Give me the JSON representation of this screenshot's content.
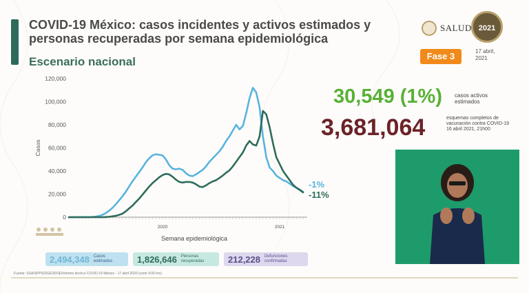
{
  "slide": {
    "title": "COVID-19 México: casos incidentes y activos estimados y personas recuperadas por semana epidemiológica",
    "subtitle": "Escenario nacional",
    "fase_label": "Fase 3",
    "date_line1": "17 abril,",
    "date_line2": "2021",
    "salud_label": "SALUD",
    "logo_year": "2021"
  },
  "stats": {
    "active_value": "30,549 (1%)",
    "active_label": "casos activos estimados",
    "vaccine_value": "3,681,064",
    "vaccine_label": "esquemas completos de vacunación contra COVID-19",
    "vaccine_date": "16 abril 2021, 21h00"
  },
  "bottom": {
    "box1_value": "2,494,348",
    "box1_label": "Casos estimados",
    "box2_value": "1,826,646",
    "box2_label": "Personas recuperadas",
    "box3_value": "212,228",
    "box3_label": "Defunciones confirmadas"
  },
  "source": "Fuente: SSA/SPPS/DGE/DIOE/Informe técnico COVID-19 México - 17 abril 2020 (corte 9:00 hrs)",
  "colors": {
    "incidentes": "#58b3de",
    "recuperadas": "#2e6b5a",
    "active_green": "#58b135",
    "vaccine_maroon": "#6b2328",
    "fase_orange": "#f08a1a"
  },
  "chart_data": {
    "type": "line",
    "title": "",
    "xlabel": "Semana epidemiológica",
    "ylabel": "Casos",
    "ylim": [
      0,
      120000
    ],
    "yticks": [
      "0",
      "20,000",
      "40,000",
      "60,000",
      "80,000",
      "100,000",
      "120,000"
    ],
    "ytick_values": [
      0,
      20000,
      40000,
      60000,
      80000,
      100000,
      120000
    ],
    "xtick_labels": [
      {
        "label": "2020",
        "week": 28
      },
      {
        "label": "2021",
        "week": 63
      }
    ],
    "grid": false,
    "weeks": 70,
    "series": [
      {
        "values": [
          0,
          0,
          0,
          0,
          0,
          0,
          0,
          200,
          500,
          1000,
          2000,
          3500,
          5500,
          8000,
          11000,
          14500,
          18000,
          22000,
          26500,
          31000,
          35000,
          39000,
          43000,
          47500,
          51000,
          53500,
          54500,
          54000,
          53500,
          50000,
          45000,
          42000,
          41500,
          42000,
          41000,
          38000,
          36000,
          35500,
          37000,
          39000,
          41000,
          44000,
          48000,
          51000,
          54000,
          57000,
          61000,
          66000,
          70000,
          75000,
          80000,
          76000,
          79000,
          90000,
          103000,
          112000,
          108000,
          95000,
          70000,
          52000,
          43000,
          40000,
          36000,
          34000,
          32000,
          31000,
          29000,
          27000,
          25500,
          24000,
          22000
        ],
        "end_label": "-1%"
      },
      {
        "values": [
          0,
          0,
          0,
          0,
          0,
          0,
          0,
          0,
          0,
          0,
          0,
          100,
          300,
          700,
          1200,
          2000,
          3000,
          5000,
          7500,
          10000,
          13000,
          16000,
          19500,
          23000,
          26500,
          29500,
          32000,
          34500,
          36500,
          37500,
          37000,
          35000,
          32500,
          30500,
          30000,
          30500,
          30500,
          30000,
          28500,
          26500,
          26000,
          27500,
          29500,
          31000,
          32000,
          34000,
          36000,
          38500,
          40500,
          44000,
          48000,
          52000,
          56000,
          62000,
          66000,
          63000,
          62000,
          70000,
          92000,
          89000,
          78000,
          64000,
          52000,
          46000,
          40000,
          36000,
          32000,
          28000,
          25500,
          23500,
          21500
        ],
        "end_label": "-11%"
      }
    ]
  }
}
